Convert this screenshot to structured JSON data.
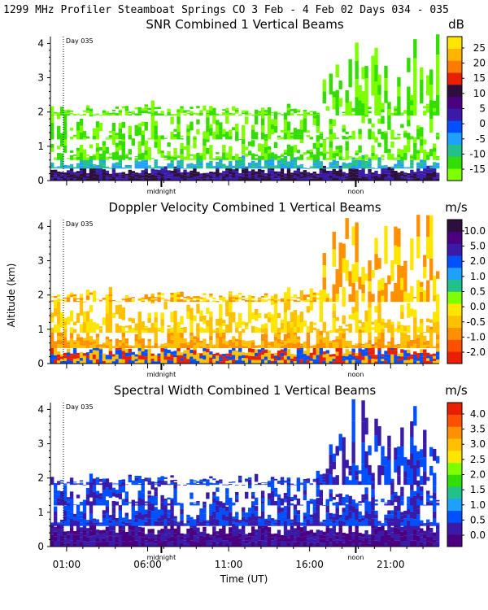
{
  "header": "1299 MHz Profiler  Steamboat Springs CO   3 Feb -  4 Feb 02 Days 034 - 035",
  "xlabel": "Time (UT)",
  "ylabel": "Altitude (km)",
  "xtick_labels": [
    "01:00",
    "06:00",
    "11:00",
    "16:00",
    "21:00"
  ],
  "x_ticks_hours": [
    1,
    6,
    11,
    16,
    21
  ],
  "x_range_hours": [
    0,
    24
  ],
  "special_marks": {
    "midnight_label": "midnight",
    "noon_label": "noon",
    "midnight_hour": 6.85,
    "noon_hour": 18.85,
    "day_line_hour": 0.8
  },
  "day_label": "Day 035",
  "chart_data": [
    {
      "type": "heatmap",
      "title": "SNR Combined 1 Vertical Beams",
      "units": "dB",
      "ylim": [
        0,
        4.2
      ],
      "yticks": [
        "0",
        "1",
        "2",
        "3",
        "4"
      ],
      "colorbar": {
        "labels": [
          "25",
          "20",
          "15",
          "10",
          "5",
          "0",
          "-5",
          "-10",
          "-15"
        ],
        "colors": [
          "#7dff00",
          "#33dd00",
          "#22c08a",
          "#1ea0ff",
          "#0050ff",
          "#3a1aa8",
          "#4b0082",
          "#2d0f3e",
          "#e82000",
          "#ff7a00",
          "#ffb400",
          "#ffe600"
        ]
      },
      "layers": [
        {
          "top": 0.35,
          "colors": [
            "#2d0f3e",
            "#3a1aa8"
          ]
        },
        {
          "top": 0.6,
          "colors": [
            "#1ea0ff",
            "#22c08a"
          ]
        },
        {
          "top": 1.2,
          "colors": [
            "#33dd00",
            "#7dff00"
          ]
        },
        {
          "top": 1.9,
          "colors": [
            "#7dff00",
            "#33dd00"
          ]
        },
        {
          "top": 3.5,
          "colors": [
            "#7dff00",
            "#33dd00"
          ]
        }
      ]
    },
    {
      "type": "heatmap",
      "title": "Doppler Velocity Combined 1 Vertical Beams",
      "units": "m/s",
      "ylim": [
        0,
        4.2
      ],
      "yticks": [
        "0",
        "1",
        "2",
        "3",
        "4"
      ],
      "colorbar": {
        "labels": [
          "10.0",
          "5.0",
          "2.0",
          "1.0",
          "0.5",
          "0.0",
          "-0.5",
          "-1.0",
          "-2.0"
        ],
        "colors": [
          "#e82000",
          "#ff5000",
          "#ff9000",
          "#ffc000",
          "#ffe600",
          "#7dff00",
          "#22c08a",
          "#1ea0ff",
          "#0050ff",
          "#3a1aa8",
          "#4b0082",
          "#2d0f3e"
        ]
      },
      "layers": [
        {
          "top": 0.45,
          "colors": [
            "#0050ff",
            "#ffc000",
            "#e82000"
          ]
        },
        {
          "top": 0.9,
          "colors": [
            "#ffc000",
            "#ff9000"
          ]
        },
        {
          "top": 1.8,
          "colors": [
            "#ffe600",
            "#ffc000"
          ]
        },
        {
          "top": 3.5,
          "colors": [
            "#ffe600",
            "#ff9000"
          ]
        }
      ]
    },
    {
      "type": "heatmap",
      "title": "Spectral Width Combined 1 Vertical Beams",
      "units": "m/s",
      "ylim": [
        0,
        4.2
      ],
      "yticks": [
        "0",
        "1",
        "2",
        "3",
        "4"
      ],
      "colorbar": {
        "labels": [
          "4.0",
          "3.5",
          "3.0",
          "2.5",
          "2.0",
          "1.5",
          "1.0",
          "0.5",
          "0.0"
        ],
        "colors": [
          "#4b0082",
          "#3a1aa8",
          "#0050ff",
          "#1ea0ff",
          "#22c08a",
          "#33dd00",
          "#7dff00",
          "#ffe600",
          "#ffc000",
          "#ff9000",
          "#ff5000",
          "#e82000"
        ]
      },
      "layers": [
        {
          "top": 0.6,
          "colors": [
            "#4b0082",
            "#3a1aa8"
          ]
        },
        {
          "top": 1.2,
          "colors": [
            "#3a1aa8",
            "#0050ff"
          ]
        },
        {
          "top": 1.8,
          "colors": [
            "#0050ff",
            "#3a1aa8"
          ]
        },
        {
          "top": 3.5,
          "colors": [
            "#0050ff",
            "#3a1aa8"
          ]
        }
      ]
    }
  ]
}
